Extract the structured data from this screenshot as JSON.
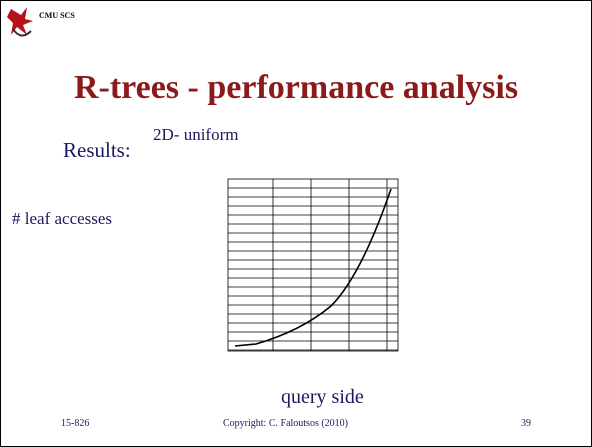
{
  "header": {
    "logo_text": "CMU SCS"
  },
  "title": "R-trees - performance analysis",
  "body": {
    "label": "Results:",
    "subtitle": "2D- uniform",
    "y_label": "# leaf accesses",
    "x_label": "query side"
  },
  "footer": {
    "course": "15-826",
    "copyright": "Copyright: C. Faloutsos (2010)",
    "page": "39"
  }
}
